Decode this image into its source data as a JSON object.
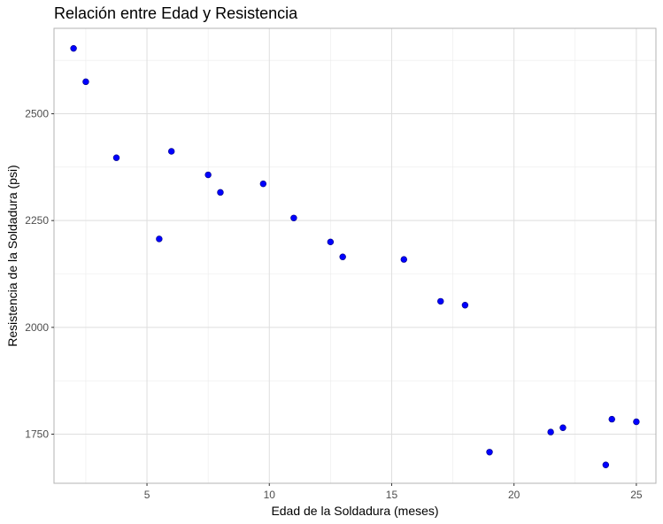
{
  "chart_data": {
    "type": "scatter",
    "title": "Relación entre Edad y Resistencia",
    "xlabel": "Edad de la Soldadura (meses)",
    "ylabel": "Resistencia de la Soldadura (psi)",
    "xlim": [
      1.2,
      25.8
    ],
    "ylim": [
      1635,
      2700
    ],
    "xticks": [
      5,
      10,
      15,
      20,
      25
    ],
    "yticks": [
      1750,
      2000,
      2250,
      2500
    ],
    "grid": true,
    "point_color": "#0000ff",
    "points": [
      {
        "x": 2.0,
        "y": 2653
      },
      {
        "x": 2.5,
        "y": 2575
      },
      {
        "x": 3.75,
        "y": 2397
      },
      {
        "x": 5.5,
        "y": 2207
      },
      {
        "x": 6.0,
        "y": 2412
      },
      {
        "x": 7.5,
        "y": 2357
      },
      {
        "x": 8.0,
        "y": 2316
      },
      {
        "x": 9.75,
        "y": 2336
      },
      {
        "x": 11.0,
        "y": 2256
      },
      {
        "x": 12.5,
        "y": 2200
      },
      {
        "x": 13.0,
        "y": 2165
      },
      {
        "x": 15.5,
        "y": 2159
      },
      {
        "x": 17.0,
        "y": 2061
      },
      {
        "x": 18.0,
        "y": 2052
      },
      {
        "x": 19.0,
        "y": 1708
      },
      {
        "x": 21.5,
        "y": 1755
      },
      {
        "x": 22.0,
        "y": 1765
      },
      {
        "x": 23.75,
        "y": 1678
      },
      {
        "x": 24.0,
        "y": 1785
      },
      {
        "x": 25.0,
        "y": 1779
      }
    ]
  }
}
